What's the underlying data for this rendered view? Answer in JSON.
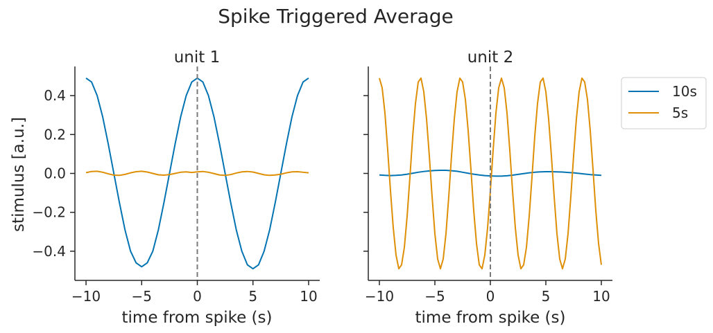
{
  "chart_data": {
    "type": "line",
    "suptitle": "Spike Triggered Average",
    "ylabel": "stimulus [a.u.]",
    "xlim": [
      -11,
      11
    ],
    "ylim": [
      -0.55,
      0.55
    ],
    "xticks": [
      -10,
      -5,
      0,
      5,
      10
    ],
    "xtick_labels": [
      "−10",
      "−5",
      "0",
      "5",
      "10"
    ],
    "yticks": [
      -0.4,
      -0.2,
      0.0,
      0.2,
      0.4
    ],
    "ytick_labels": [
      "−0.4",
      "−0.2",
      "0.0",
      "0.2",
      "0.4"
    ],
    "vline_x": 0,
    "legend_position": "outside-right",
    "legend": [
      {
        "name": "10s",
        "color": "#0173b2"
      },
      {
        "name": "5s",
        "color": "#de8f05"
      }
    ],
    "panels": [
      {
        "title": "unit 1",
        "xlabel": "time from spike (s)",
        "series": [
          {
            "name": "10s",
            "color": "#0173b2",
            "x": [
              -10,
              -9.5,
              -9,
              -8.5,
              -8,
              -7.5,
              -7,
              -6.5,
              -6,
              -5.5,
              -5,
              -4.5,
              -4,
              -3.5,
              -3,
              -2.5,
              -2,
              -1.5,
              -1,
              -0.5,
              0,
              0.5,
              1,
              1.5,
              2,
              2.5,
              3,
              3.5,
              4,
              4.5,
              5,
              5.5,
              6,
              6.5,
              7,
              7.5,
              8,
              8.5,
              9,
              9.5,
              10
            ],
            "y": [
              0.49,
              0.47,
              0.4,
              0.29,
              0.15,
              0.0,
              -0.15,
              -0.29,
              -0.4,
              -0.46,
              -0.48,
              -0.46,
              -0.4,
              -0.29,
              -0.15,
              0.0,
              0.15,
              0.29,
              0.4,
              0.47,
              0.49,
              0.47,
              0.4,
              0.29,
              0.15,
              0.0,
              -0.15,
              -0.29,
              -0.4,
              -0.47,
              -0.49,
              -0.47,
              -0.4,
              -0.29,
              -0.15,
              0.0,
              0.15,
              0.29,
              0.4,
              0.47,
              0.49
            ]
          },
          {
            "name": "5s",
            "color": "#de8f05",
            "x": [
              -10,
              -9.5,
              -9,
              -8.5,
              -8,
              -7.5,
              -7,
              -6.5,
              -6,
              -5.5,
              -5,
              -4.5,
              -4,
              -3.5,
              -3,
              -2.5,
              -2,
              -1.5,
              -1,
              -0.5,
              0,
              0.5,
              1,
              1.5,
              2,
              2.5,
              3,
              3.5,
              4,
              4.5,
              5,
              5.5,
              6,
              6.5,
              7,
              7.5,
              8,
              8.5,
              9,
              9.5,
              10
            ],
            "y": [
              0.004,
              0.01,
              0.011,
              0.006,
              -0.002,
              -0.009,
              -0.01,
              -0.005,
              0.003,
              0.009,
              0.011,
              0.007,
              0.0,
              -0.007,
              -0.009,
              -0.006,
              0.0,
              0.006,
              0.008,
              0.005,
              0.008,
              0.01,
              0.006,
              -0.001,
              -0.008,
              -0.01,
              -0.006,
              0.002,
              0.008,
              0.01,
              0.007,
              0.0,
              -0.007,
              -0.01,
              -0.008,
              -0.004,
              0.003,
              0.008,
              0.009,
              0.006,
              0.003
            ]
          }
        ]
      },
      {
        "title": "unit 2",
        "xlabel": "time from spike (s)",
        "series": [
          {
            "name": "10s",
            "color": "#0173b2",
            "x": [
              -10,
              -9.5,
              -9,
              -8.5,
              -8,
              -7.5,
              -7,
              -6.5,
              -6,
              -5.5,
              -5,
              -4.5,
              -4,
              -3.5,
              -3,
              -2.5,
              -2,
              -1.5,
              -1,
              -0.5,
              0,
              0.5,
              1,
              1.5,
              2,
              2.5,
              3,
              3.5,
              4,
              4.5,
              5,
              5.5,
              6,
              6.5,
              7,
              7.5,
              8,
              8.5,
              9,
              9.5,
              10
            ],
            "y": [
              -0.008,
              -0.01,
              -0.011,
              -0.01,
              -0.008,
              -0.004,
              0.001,
              0.006,
              0.01,
              0.013,
              0.015,
              0.016,
              0.016,
              0.014,
              0.011,
              0.006,
              0.001,
              -0.004,
              -0.008,
              -0.011,
              -0.013,
              -0.014,
              -0.014,
              -0.012,
              -0.009,
              -0.005,
              -0.001,
              0.003,
              0.006,
              0.008,
              0.009,
              0.009,
              0.008,
              0.007,
              0.005,
              0.003,
              0.0,
              -0.003,
              -0.006,
              -0.008,
              -0.01
            ]
          },
          {
            "name": "5s",
            "color": "#de8f05",
            "x": [
              -10,
              -9.75,
              -9.5,
              -9.25,
              -9,
              -8.75,
              -8.5,
              -8.25,
              -8,
              -7.75,
              -7.5,
              -7.25,
              -7,
              -6.75,
              -6.5,
              -6.25,
              -6,
              -5.75,
              -5.5,
              -5.25,
              -5,
              -4.75,
              -4.5,
              -4.25,
              -4,
              -3.75,
              -3.5,
              -3.25,
              -3,
              -2.75,
              -2.5,
              -2.25,
              -2,
              -1.75,
              -1.5,
              -1.25,
              -1,
              -0.75,
              -0.5,
              -0.25,
              0,
              0.25,
              0.5,
              0.75,
              1,
              1.25,
              1.5,
              1.75,
              2,
              2.25,
              2.5,
              2.75,
              3,
              3.25,
              3.5,
              3.75,
              4,
              4.25,
              4.5,
              4.75,
              5,
              5.25,
              5.5,
              5.75,
              6,
              6.25,
              6.5,
              6.75,
              7,
              7.25,
              7.5,
              7.75,
              8,
              8.25,
              8.5,
              8.75,
              9,
              9.25,
              9.5,
              9.75,
              10
            ],
            "y": [
              0.49,
              0.44,
              0.31,
              0.12,
              -0.09,
              -0.28,
              -0.42,
              -0.49,
              -0.47,
              -0.38,
              -0.22,
              -0.02,
              0.19,
              0.36,
              0.47,
              0.49,
              0.42,
              0.28,
              0.09,
              -0.12,
              -0.31,
              -0.44,
              -0.49,
              -0.44,
              -0.31,
              -0.12,
              0.09,
              0.28,
              0.42,
              0.49,
              0.47,
              0.38,
              0.22,
              0.02,
              -0.19,
              -0.36,
              -0.47,
              -0.49,
              -0.42,
              -0.28,
              -0.09,
              0.12,
              0.31,
              0.44,
              0.49,
              0.44,
              0.31,
              0.12,
              -0.09,
              -0.28,
              -0.42,
              -0.49,
              -0.47,
              -0.38,
              -0.22,
              -0.02,
              0.19,
              0.36,
              0.47,
              0.49,
              0.42,
              0.28,
              0.09,
              -0.12,
              -0.31,
              -0.44,
              -0.49,
              -0.44,
              -0.31,
              -0.12,
              0.09,
              0.28,
              0.42,
              0.49,
              0.47,
              0.38,
              0.22,
              0.02,
              -0.19,
              -0.36,
              -0.47
            ]
          }
        ]
      }
    ]
  }
}
